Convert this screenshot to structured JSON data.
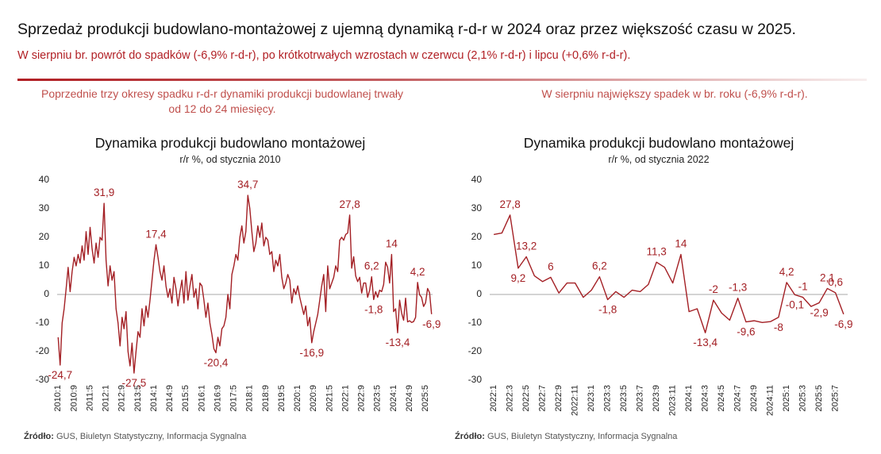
{
  "header": {
    "title": "Sprzedaż produkcji budowlano-montażowej z ujemną dynamiką r-d-r w 2024 oraz przez większość czasu w 2025.",
    "subtitle": "W sierpniu br. powrót do spadków (-6,9% r-d-r), po krótkotrwałych wzrostach w czerwcu (2,1% r-d-r) i lipcu (+0,6% r-d-r)."
  },
  "chart_data": [
    {
      "type": "line",
      "title": "Dynamika produkcji budowlano montażowej",
      "subtitle": "r/r %, od stycznia 2010",
      "annotation": "Poprzednie trzy okresy spadku r-d-r dynamiki produkcji budowlanej trwały od 12 do 24 miesięcy.",
      "source_label": "Źródło:",
      "source": "GUS, Biuletyn Statystyczny, Informacja Sygnalna",
      "color": "#a31f24",
      "ylim": [
        -30,
        40
      ],
      "yticks": [
        -30,
        -20,
        -10,
        0,
        10,
        20,
        30,
        40
      ],
      "categories": [
        "2010:1",
        null,
        null,
        null,
        null,
        null,
        null,
        null,
        "2010:9",
        null,
        null,
        null,
        null,
        null,
        null,
        null,
        "2011:5",
        null,
        null,
        null,
        null,
        null,
        null,
        null,
        "2012:1",
        null,
        null,
        null,
        null,
        null,
        null,
        null,
        "2012:9",
        null,
        null,
        null,
        null,
        null,
        null,
        null,
        "2013:5",
        null,
        null,
        null,
        null,
        null,
        null,
        null,
        "2014:1",
        null,
        null,
        null,
        null,
        null,
        null,
        null,
        "2014:9",
        null,
        null,
        null,
        null,
        null,
        null,
        null,
        "2015:5",
        null,
        null,
        null,
        null,
        null,
        null,
        null,
        "2016:1",
        null,
        null,
        null,
        null,
        null,
        null,
        null,
        "2016:9",
        null,
        null,
        null,
        null,
        null,
        null,
        null,
        "2017:5",
        null,
        null,
        null,
        null,
        null,
        null,
        null,
        "2018:1",
        null,
        null,
        null,
        null,
        null,
        null,
        null,
        "2018:9",
        null,
        null,
        null,
        null,
        null,
        null,
        null,
        "2019:5",
        null,
        null,
        null,
        null,
        null,
        null,
        null,
        "2020:1",
        null,
        null,
        null,
        null,
        null,
        null,
        null,
        "2020:9",
        null,
        null,
        null,
        null,
        null,
        null,
        null,
        "2021:5",
        null,
        null,
        null,
        null,
        null,
        null,
        null,
        "2022:1",
        null,
        null,
        null,
        null,
        null,
        null,
        null,
        "2022:9",
        null,
        null,
        null,
        null,
        null,
        null,
        null,
        "2023:5",
        null,
        null,
        null,
        null,
        null,
        null,
        null,
        "2024:1",
        null,
        null,
        null,
        null,
        null,
        null,
        null,
        "2024:9",
        null,
        null,
        null,
        null,
        null,
        null,
        null,
        "2025:5",
        null,
        null,
        null
      ],
      "values": [
        -15,
        -24.7,
        -10,
        -5,
        2,
        9.5,
        1,
        8,
        13,
        10,
        14,
        11,
        17,
        12,
        22,
        14,
        23.5,
        16,
        11,
        18,
        13,
        20,
        19,
        31.9,
        12,
        3,
        10,
        5,
        8,
        -5,
        -10,
        -18,
        -8,
        -12,
        -6,
        -20,
        -25,
        -17,
        -27.5,
        -20,
        -13,
        -15,
        -5,
        -11,
        -4,
        -8,
        -2,
        5,
        12,
        17.4,
        13,
        8,
        5,
        10,
        3,
        -1,
        2,
        -3,
        6,
        2,
        -4,
        1,
        5,
        -3,
        8,
        -2,
        3,
        7,
        -1,
        2,
        -5,
        4,
        3,
        -2,
        -8,
        -3,
        -10,
        -14,
        -19,
        -20.4,
        -15,
        -18,
        -12,
        -11,
        -8,
        0,
        -5,
        7,
        10,
        14,
        12,
        20,
        24,
        18,
        22,
        34.7,
        30,
        22,
        15,
        18,
        24,
        20,
        25,
        17,
        20,
        19,
        14,
        15,
        8,
        12,
        10,
        14,
        6,
        2,
        4,
        7,
        5,
        -3,
        2,
        0,
        3,
        -1,
        -4,
        -7,
        -4,
        -11,
        -8,
        -16.9,
        -13,
        -10,
        -7,
        -2,
        3,
        7,
        -6,
        10,
        2,
        4,
        6,
        10,
        8,
        19,
        20,
        19,
        21,
        21.5,
        27.8,
        9.2,
        13.2,
        6.5,
        4.5,
        6,
        0.5,
        4,
        4,
        -1,
        1.5,
        6.2,
        -1.8,
        1,
        -1,
        1.5,
        1,
        3.5,
        11.3,
        9.5,
        4,
        14,
        -6,
        -5,
        -13.4,
        -2,
        -6.5,
        -9,
        -1.3,
        -9.6,
        -9.2,
        -9.8,
        -9.5,
        -8,
        4.2,
        -0.1,
        -1,
        -4.2,
        -2.9,
        2.1,
        0.6,
        -6.9
      ],
      "value_labels": [
        null,
        "-24,7",
        null,
        null,
        null,
        null,
        null,
        null,
        null,
        null,
        null,
        null,
        null,
        null,
        null,
        null,
        null,
        null,
        null,
        null,
        null,
        null,
        null,
        "31,9",
        null,
        null,
        null,
        null,
        null,
        null,
        null,
        null,
        null,
        null,
        null,
        null,
        null,
        null,
        "-27,5",
        null,
        null,
        null,
        null,
        null,
        null,
        null,
        null,
        null,
        null,
        "17,4",
        null,
        null,
        null,
        null,
        null,
        null,
        null,
        null,
        null,
        null,
        null,
        null,
        null,
        null,
        null,
        null,
        null,
        null,
        null,
        null,
        null,
        null,
        null,
        null,
        null,
        null,
        null,
        null,
        null,
        "-20,4",
        null,
        null,
        null,
        null,
        null,
        null,
        null,
        null,
        null,
        null,
        null,
        null,
        null,
        null,
        null,
        "34,7",
        null,
        null,
        null,
        null,
        null,
        null,
        null,
        null,
        null,
        null,
        null,
        null,
        null,
        null,
        null,
        null,
        null,
        null,
        null,
        null,
        null,
        null,
        null,
        null,
        null,
        null,
        null,
        null,
        null,
        null,
        null,
        "-16,9",
        null,
        null,
        null,
        null,
        null,
        null,
        null,
        null,
        null,
        null,
        null,
        null,
        null,
        null,
        null,
        null,
        null,
        null,
        "27,8",
        null,
        null,
        null,
        null,
        null,
        null,
        null,
        null,
        null,
        null,
        "6,2",
        "-1,8",
        null,
        null,
        null,
        null,
        null,
        null,
        null,
        null,
        "14",
        null,
        null,
        "-13,4",
        null,
        null,
        null,
        null,
        null,
        null,
        null,
        null,
        null,
        "4,2",
        null,
        null,
        null,
        null,
        null,
        null,
        "-6,9"
      ]
    },
    {
      "type": "line",
      "title": "Dynamika produkcji budowlano montażowej",
      "subtitle": "r/r %, od stycznia 2022",
      "annotation": "W sierpniu największy spadek w br. roku (-6,9% r-d-r).",
      "source_label": "Źródło:",
      "source": "GUS, Biuletyn Statystyczny, Informacja Sygnalna",
      "color": "#a31f24",
      "ylim": [
        -30,
        40
      ],
      "yticks": [
        -30,
        -20,
        -10,
        0,
        10,
        20,
        30,
        40
      ],
      "categories": [
        "2022:1",
        null,
        "2022:3",
        null,
        "2022:5",
        null,
        "2022:7",
        null,
        "2022:9",
        null,
        "2022:11",
        null,
        "2023:1",
        null,
        "2023:3",
        null,
        "2023:5",
        null,
        "2023:7",
        null,
        "2023:9",
        null,
        "2023:11",
        null,
        "2024:1",
        null,
        "2024:3",
        null,
        "2024:5",
        null,
        "2024:7",
        null,
        "2024:9",
        null,
        "2024:11",
        null,
        "2025:1",
        null,
        "2025:3",
        null,
        "2025:5",
        null,
        "2025:7",
        null
      ],
      "values": [
        21,
        21.5,
        27.8,
        9.2,
        13.2,
        6.5,
        4.5,
        6,
        0.5,
        4,
        4,
        -1,
        1.5,
        6.2,
        -1.8,
        1,
        -1,
        1.5,
        1,
        3.5,
        11.3,
        9.5,
        4,
        14,
        -6,
        -5,
        -13.4,
        -2,
        -6.5,
        -9,
        -1.3,
        -9.6,
        -9.2,
        -9.8,
        -9.5,
        -8,
        4.2,
        -0.1,
        -1,
        -4.2,
        -2.9,
        2.1,
        0.6,
        -6.9
      ],
      "value_labels": [
        null,
        null,
        "27,8",
        "9,2",
        "13,2",
        null,
        null,
        "6",
        null,
        null,
        null,
        null,
        null,
        "6,2",
        "-1,8",
        null,
        null,
        null,
        null,
        null,
        "11,3",
        null,
        null,
        "14",
        null,
        null,
        "-13,4",
        "-2",
        null,
        null,
        "-1,3",
        "-9,6",
        null,
        null,
        null,
        "-8",
        "4,2",
        "-0,1",
        "-1",
        null,
        "-2,9",
        "2,1",
        "0,6",
        "-6,9"
      ]
    }
  ]
}
